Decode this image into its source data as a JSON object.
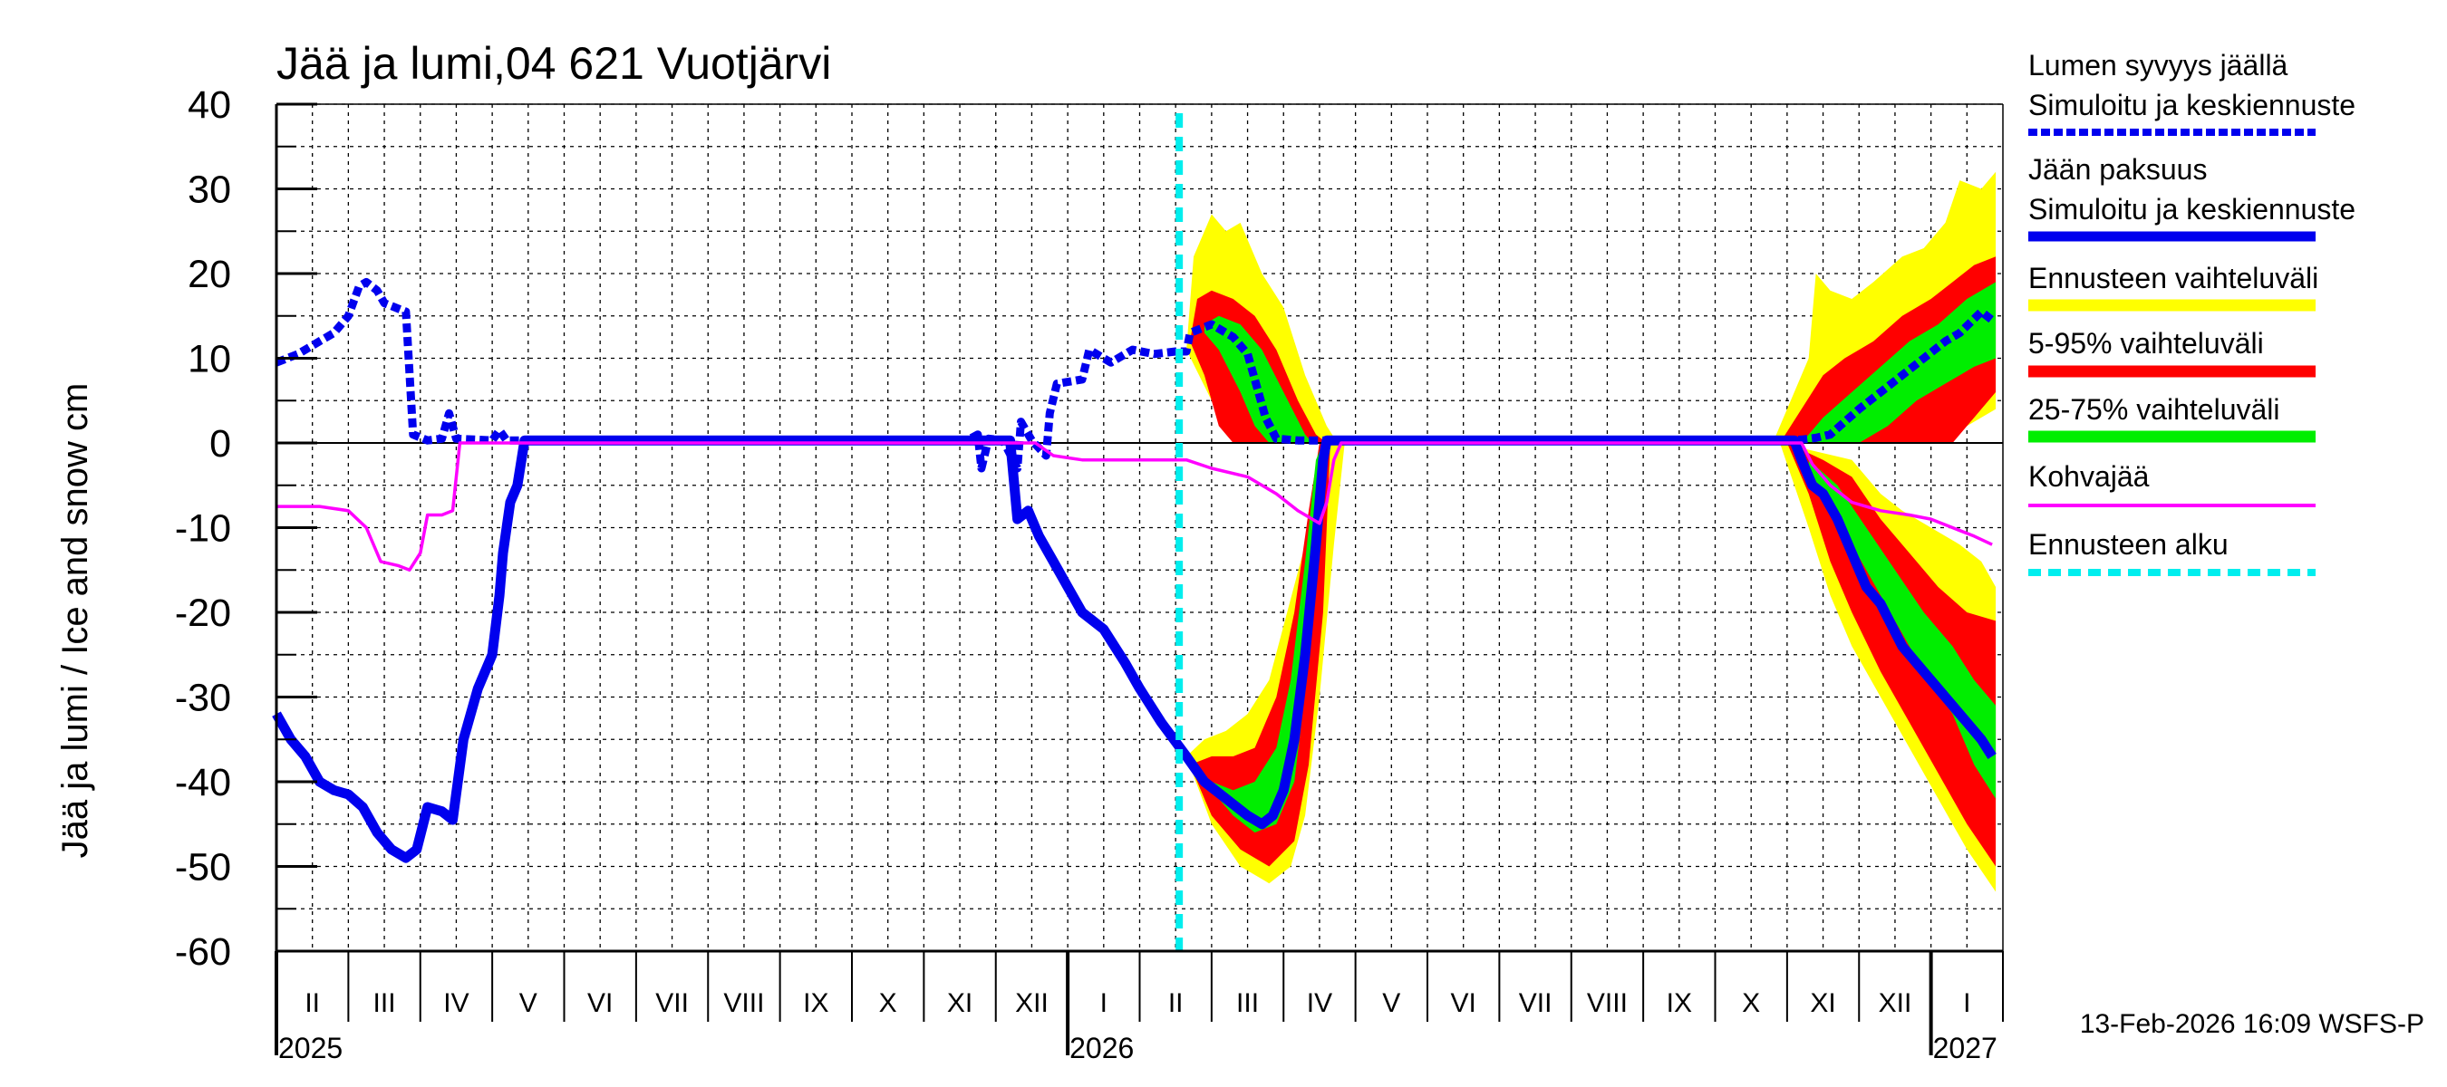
{
  "chart_data": {
    "type": "area",
    "title": "Jää ja lumi,04 621 Vuotjärvi",
    "ylabel": "Jää ja lumi / Ice and snow    cm",
    "ylim": [
      -60,
      40
    ],
    "yticks": [
      40,
      30,
      20,
      10,
      0,
      -10,
      -20,
      -30,
      -40,
      -50,
      -60
    ],
    "x_months": [
      "II",
      "III",
      "IV",
      "V",
      "VI",
      "VII",
      "VIII",
      "IX",
      "X",
      "XI",
      "XII",
      "I",
      "II",
      "III",
      "IV",
      "V",
      "VI",
      "VII",
      "VIII",
      "IX",
      "X",
      "XI",
      "XII",
      "I"
    ],
    "x_years": [
      "2025",
      "2026",
      "2027"
    ],
    "forecast_start_month_index": 12.55,
    "grid": true,
    "legend_position": "right",
    "timestamp": "13-Feb-2026 16:09 WSFS-P",
    "colors": {
      "snow": "#0000ee",
      "ice": "#0000ee",
      "range_full": "#ffff00",
      "range_5_95": "#ff0000",
      "range_25_75": "#00ee00",
      "slush": "#ff00ff",
      "forecast_start": "#00eeee"
    },
    "legend": [
      {
        "label": "Lumen syvyys jäällä",
        "label2": "Simuloitu ja keskiennuste",
        "style": "dashed-blue"
      },
      {
        "label": "Jään paksuus",
        "label2": "Simuloitu ja keskiennuste",
        "style": "solid-blue"
      },
      {
        "label": "Ennusteen vaihteluväli",
        "style": "yellow"
      },
      {
        "label": "5-95% vaihteluväli",
        "style": "red"
      },
      {
        "label": "25-75% vaihteluväli",
        "style": "green"
      },
      {
        "label": "Kohvajää",
        "style": "magenta"
      },
      {
        "label": "Ennusteen alku",
        "style": "cyan-dashed"
      }
    ],
    "series": [
      {
        "name": "Lumen syvyys jäällä",
        "points": [
          [
            0,
            9.5
          ],
          [
            0.3,
            10.5
          ],
          [
            0.6,
            12
          ],
          [
            0.8,
            13
          ],
          [
            1,
            15
          ],
          [
            1.15,
            18.5
          ],
          [
            1.25,
            19
          ],
          [
            1.4,
            18
          ],
          [
            1.5,
            16.5
          ],
          [
            1.8,
            15.5
          ],
          [
            1.9,
            1
          ],
          [
            2.1,
            0.3
          ],
          [
            2.3,
            0.5
          ],
          [
            2.4,
            3.5
          ],
          [
            2.5,
            0.5
          ],
          [
            3,
            0.3
          ],
          [
            3.1,
            1.5
          ],
          [
            3.2,
            0.3
          ],
          [
            9.6,
            0.3
          ],
          [
            9.75,
            1
          ],
          [
            9.8,
            -3
          ],
          [
            9.9,
            0.5
          ],
          [
            10.1,
            0.3
          ],
          [
            10.3,
            -3
          ],
          [
            10.35,
            2.5
          ],
          [
            10.5,
            0.3
          ],
          [
            10.7,
            -1.5
          ],
          [
            10.75,
            3.5
          ],
          [
            10.85,
            7
          ],
          [
            11.2,
            7.5
          ],
          [
            11.3,
            11
          ],
          [
            11.6,
            9.5
          ],
          [
            11.9,
            11
          ],
          [
            12.2,
            10.5
          ],
          [
            12.5,
            10.8
          ],
          [
            12.65,
            10.8
          ],
          [
            12.7,
            13
          ],
          [
            13.0,
            14
          ],
          [
            13.3,
            12.5
          ],
          [
            13.5,
            10.5
          ],
          [
            13.75,
            3
          ],
          [
            13.9,
            0.5
          ],
          [
            14.2,
            0.3
          ],
          [
            14.4,
            0.3
          ],
          [
            20.9,
            0.3
          ],
          [
            21.2,
            0.4
          ],
          [
            21.4,
            0.6
          ],
          [
            21.6,
            1
          ],
          [
            21.8,
            2.5
          ],
          [
            22.0,
            4
          ],
          [
            22.3,
            6
          ],
          [
            22.6,
            8
          ],
          [
            22.9,
            10
          ],
          [
            23.2,
            12
          ],
          [
            23.4,
            13
          ],
          [
            23.7,
            15.5
          ],
          [
            23.85,
            14.5
          ]
        ]
      },
      {
        "name": "Jään paksuus",
        "points": [
          [
            0,
            -32
          ],
          [
            0.2,
            -35
          ],
          [
            0.4,
            -37
          ],
          [
            0.6,
            -40
          ],
          [
            0.8,
            -41
          ],
          [
            1,
            -41.5
          ],
          [
            1.2,
            -43
          ],
          [
            1.4,
            -46
          ],
          [
            1.6,
            -48
          ],
          [
            1.8,
            -49
          ],
          [
            1.95,
            -48
          ],
          [
            2.1,
            -43
          ],
          [
            2.3,
            -43.5
          ],
          [
            2.45,
            -44.5
          ],
          [
            2.6,
            -35
          ],
          [
            2.8,
            -29
          ],
          [
            3.0,
            -25
          ],
          [
            3.1,
            -18
          ],
          [
            3.15,
            -13
          ],
          [
            3.25,
            -7
          ],
          [
            3.35,
            -5
          ],
          [
            3.45,
            0.3
          ],
          [
            10.2,
            0.3
          ],
          [
            10.3,
            -9
          ],
          [
            10.45,
            -8
          ],
          [
            10.6,
            -11
          ],
          [
            10.8,
            -14
          ],
          [
            11.0,
            -17
          ],
          [
            11.2,
            -20
          ],
          [
            11.5,
            -22
          ],
          [
            11.8,
            -26
          ],
          [
            12.0,
            -29
          ],
          [
            12.3,
            -33
          ],
          [
            12.65,
            -37
          ],
          [
            12.9,
            -40
          ],
          [
            13.2,
            -42
          ],
          [
            13.5,
            -44
          ],
          [
            13.7,
            -45
          ],
          [
            13.85,
            -44
          ],
          [
            14.0,
            -41
          ],
          [
            14.15,
            -35
          ],
          [
            14.3,
            -25
          ],
          [
            14.45,
            -12
          ],
          [
            14.55,
            -2
          ],
          [
            14.6,
            0.3
          ],
          [
            21.1,
            0.3
          ],
          [
            21.2,
            -2
          ],
          [
            21.35,
            -5
          ],
          [
            21.5,
            -6
          ],
          [
            21.7,
            -9
          ],
          [
            21.9,
            -13
          ],
          [
            22.1,
            -17
          ],
          [
            22.3,
            -19
          ],
          [
            22.6,
            -24
          ],
          [
            22.9,
            -27
          ],
          [
            23.2,
            -30
          ],
          [
            23.5,
            -33
          ],
          [
            23.7,
            -35
          ],
          [
            23.85,
            -37
          ]
        ]
      },
      {
        "name": "Kohvajää",
        "points": [
          [
            0,
            -7.5
          ],
          [
            0.6,
            -7.5
          ],
          [
            1.0,
            -8
          ],
          [
            1.25,
            -10
          ],
          [
            1.45,
            -14
          ],
          [
            1.7,
            -14.5
          ],
          [
            1.85,
            -15
          ],
          [
            2.0,
            -13
          ],
          [
            2.1,
            -8.5
          ],
          [
            2.3,
            -8.5
          ],
          [
            2.45,
            -8
          ],
          [
            2.55,
            0
          ],
          [
            10.55,
            0
          ],
          [
            10.8,
            -1.5
          ],
          [
            11.2,
            -2
          ],
          [
            12.65,
            -2
          ],
          [
            13.0,
            -3
          ],
          [
            13.5,
            -4
          ],
          [
            13.9,
            -6
          ],
          [
            14.2,
            -8
          ],
          [
            14.5,
            -9.5
          ],
          [
            14.6,
            -7
          ],
          [
            14.7,
            -2
          ],
          [
            14.8,
            0
          ],
          [
            21.2,
            0
          ],
          [
            21.35,
            -2.5
          ],
          [
            21.6,
            -5
          ],
          [
            21.9,
            -7
          ],
          [
            22.3,
            -8
          ],
          [
            22.7,
            -8.5
          ],
          [
            23.0,
            -9
          ],
          [
            23.3,
            -10
          ],
          [
            23.6,
            -11
          ],
          [
            23.85,
            -12
          ]
        ]
      }
    ]
  }
}
